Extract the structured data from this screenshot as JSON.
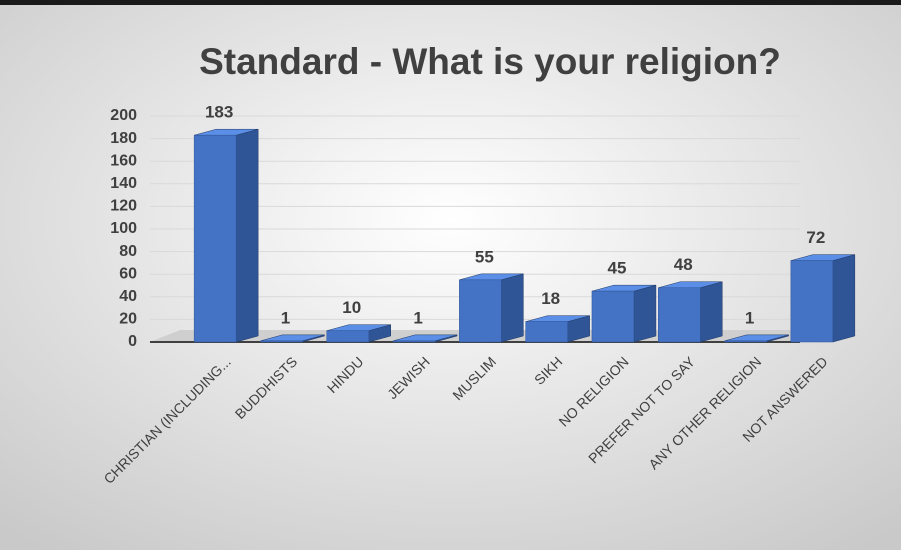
{
  "chart_data": {
    "type": "bar3d",
    "title": "Standard - What is your religion?",
    "categories": [
      "CHRISTIAN (INCLUDING...",
      "BUDDHISTS",
      "HINDU",
      "JEWISH",
      "MUSLIM",
      "SIKH",
      "NO RELIGION",
      "PREFER NOT TO SAY",
      "ANY OTHER RELIGION",
      "NOT ANSWERED"
    ],
    "values": [
      183,
      1,
      10,
      1,
      55,
      18,
      45,
      48,
      1,
      72
    ],
    "color": "#4472c4",
    "ylim": [
      0,
      200
    ],
    "yticks": [
      0,
      20,
      40,
      60,
      80,
      100,
      120,
      140,
      160,
      180,
      200
    ],
    "grid": true
  }
}
